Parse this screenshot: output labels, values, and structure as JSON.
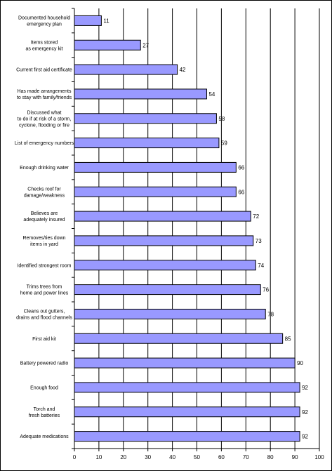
{
  "chart_data": {
    "type": "bar",
    "orientation": "horizontal",
    "categories": [
      [
        "Documented household",
        "emergency plan"
      ],
      [
        "Items stored",
        "as emergency kit"
      ],
      [
        "Current first aid certificate"
      ],
      [
        "Has made arrangements",
        "to stay with family/friends"
      ],
      [
        "Discussed what",
        "to do if at risk of a storm,",
        "cyclone, flooding or fire"
      ],
      [
        "List of emergency numbers"
      ],
      [
        "Enough drinking water"
      ],
      [
        "Checks roof for",
        "damage/weakness"
      ],
      [
        "Believes are",
        "adequately insured"
      ],
      [
        "Removes/ties down",
        "items in yard"
      ],
      [
        "Identified strongest room"
      ],
      [
        "Trims trees from",
        "home and power lines"
      ],
      [
        "Cleans out gutters,",
        "drains and flood channels"
      ],
      [
        "First aid kit"
      ],
      [
        "Battery powered radio"
      ],
      [
        "Enough food"
      ],
      [
        "Torch and",
        "fresh batteries"
      ],
      [
        "Adequate medications"
      ]
    ],
    "values": [
      11,
      27,
      42,
      54,
      58,
      59,
      66,
      66,
      72,
      73,
      74,
      76,
      78,
      85,
      90,
      92,
      92,
      92
    ],
    "xlim": [
      0,
      100
    ],
    "xticks": [
      "0",
      "10",
      "20",
      "30",
      "40",
      "50",
      "60",
      "70",
      "80",
      "90",
      "100"
    ],
    "grid": true,
    "legend": "none",
    "bar_color": "#9999ff",
    "bar_edge_color": "#000000",
    "gridline_color": "#000000"
  }
}
